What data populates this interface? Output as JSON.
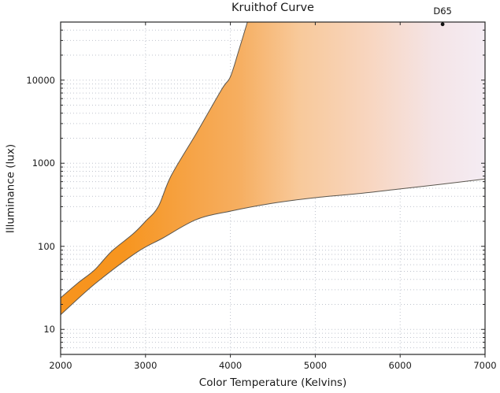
{
  "chart_data": {
    "type": "area",
    "title": "Kruithof Curve",
    "xlabel": "Color Temperature (Kelvins)",
    "ylabel": "Illuminance (lux)",
    "x_axis": {
      "scale": "linear",
      "min": 2000,
      "max": 7000,
      "ticks": [
        2000,
        3000,
        4000,
        5000,
        6000,
        7000
      ],
      "tick_labels": [
        "2000",
        "3000",
        "4000",
        "5000",
        "6000",
        "7000"
      ]
    },
    "y_axis": {
      "scale": "log",
      "min": 5,
      "max": 50000,
      "ticks": [
        10,
        100,
        1000,
        10000
      ],
      "tick_labels": [
        "10",
        "100",
        "1000",
        "10000"
      ]
    },
    "grid": {
      "vertical_at_x_majors": true,
      "horizontal_at_log_minors": true,
      "style": "dotted"
    },
    "series": [
      {
        "name": "upper bound of pleasing region",
        "points": [
          [
            2000,
            24
          ],
          [
            2200,
            36
          ],
          [
            2400,
            52
          ],
          [
            2600,
            87
          ],
          [
            2850,
            140
          ],
          [
            3000,
            200
          ],
          [
            3150,
            300
          ],
          [
            3300,
            700
          ],
          [
            3600,
            2300
          ],
          [
            3900,
            7800
          ],
          [
            4000,
            11000
          ],
          [
            4100,
            23000
          ],
          [
            4200,
            50000
          ]
        ]
      },
      {
        "name": "lower bound of pleasing region",
        "points": [
          [
            2000,
            15
          ],
          [
            2400,
            35
          ],
          [
            2900,
            85
          ],
          [
            3200,
            125
          ],
          [
            3600,
            210
          ],
          [
            4000,
            265
          ],
          [
            4500,
            330
          ],
          [
            5000,
            385
          ],
          [
            5500,
            430
          ],
          [
            6000,
            490
          ],
          [
            6500,
            560
          ],
          [
            7000,
            645
          ]
        ]
      }
    ],
    "band_fill_note": "region between curves filled with horizontal color-temperature gradient",
    "annotations": [
      {
        "label": "D65",
        "x": 6500,
        "y": 47000,
        "marker": "dot"
      }
    ],
    "style": {
      "band_gradient_stops": [
        {
          "offset": 0.0,
          "color": "#F7941E"
        },
        {
          "offset": 0.15,
          "color": "#F7951F"
        },
        {
          "offset": 0.3,
          "color": "#F6A345"
        },
        {
          "offset": 0.42,
          "color": "#F6AE60"
        },
        {
          "offset": 0.56,
          "color": "#F8C99A"
        },
        {
          "offset": 0.72,
          "color": "#F8D5BE"
        },
        {
          "offset": 0.88,
          "color": "#F4E4E6"
        },
        {
          "offset": 1.0,
          "color": "#F4ECF3"
        }
      ],
      "curve_stroke": "#5b564e",
      "border_color": "#262626",
      "grid_color": "#bfc3cd",
      "tick_color": "#262626",
      "text_color": "#1a1a1a",
      "marker_color": "#111111",
      "background": "#ffffff"
    }
  }
}
